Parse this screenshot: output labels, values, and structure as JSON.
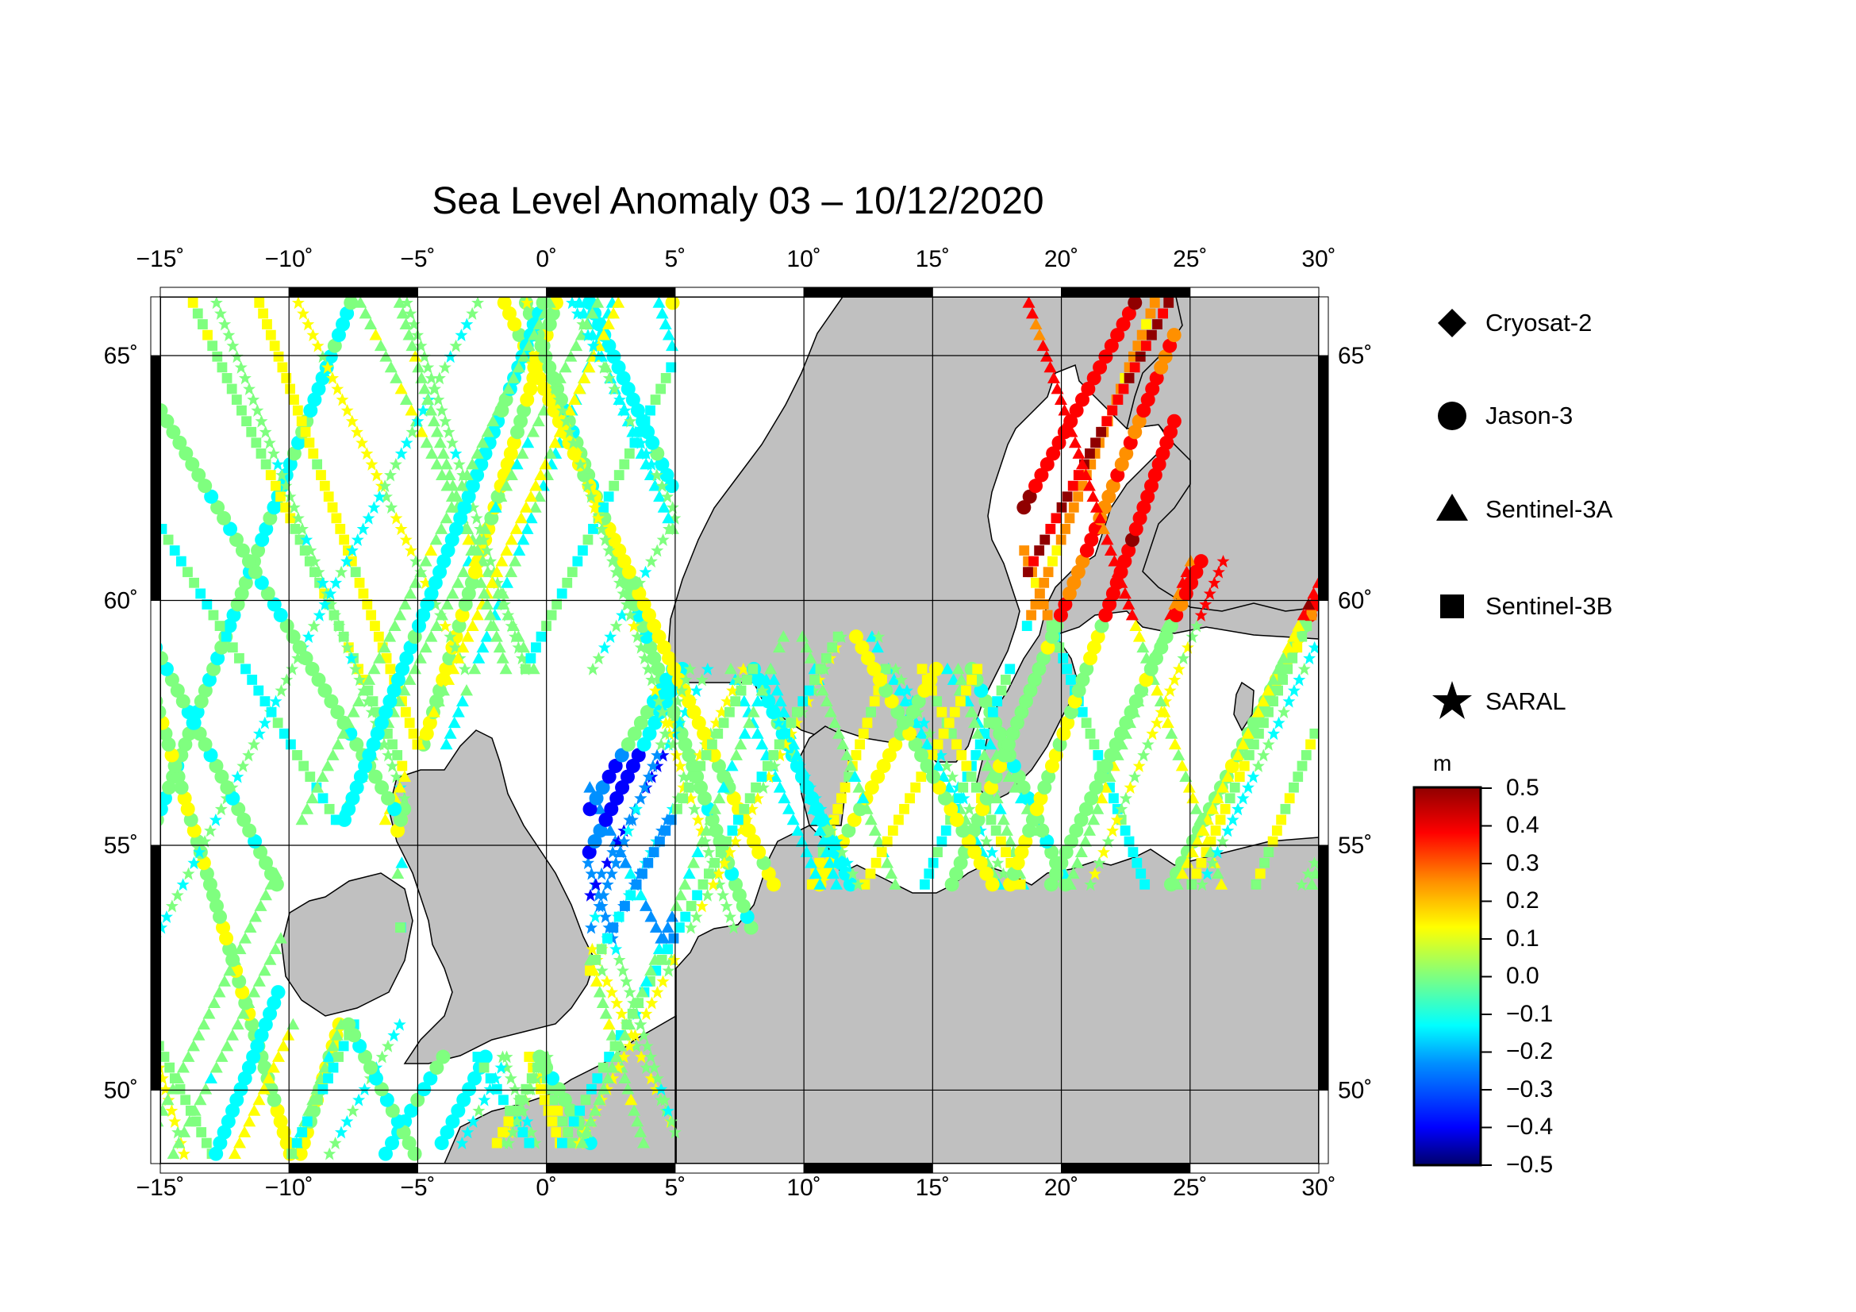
{
  "title": "Sea Level Anomaly 03 – 10/12/2020",
  "map": {
    "lon_range": [
      -15,
      30
    ],
    "lat_range": [
      48.5,
      66.2
    ],
    "lon_ticks": [
      "−15",
      "−10",
      "−5",
      "0",
      "5",
      "10",
      "15",
      "20",
      "25",
      "30"
    ],
    "lat_ticks": [
      "50",
      "55",
      "60",
      "65"
    ],
    "degree_symbol": "˚",
    "land_color": "#c0c0c0",
    "sea_color": "#ffffff",
    "grid": true
  },
  "legend": {
    "items": [
      {
        "label": "Cryosat-2",
        "icon": "diamond-icon"
      },
      {
        "label": "Jason-3",
        "icon": "circle-icon"
      },
      {
        "label": "Sentinel-3A",
        "icon": "triangle-icon"
      },
      {
        "label": "Sentinel-3B",
        "icon": "square-icon"
      },
      {
        "label": "SARAL",
        "icon": "star-icon"
      }
    ]
  },
  "colorbar": {
    "unit": "m",
    "range": [
      -0.5,
      0.5
    ],
    "ticks": [
      "0.5",
      "0.4",
      "0.3",
      "0.2",
      "0.1",
      "0.0",
      "−0.1",
      "−0.2",
      "−0.3",
      "−0.4",
      "−0.5"
    ],
    "colors": [
      "#00006a",
      "#0000ff",
      "#0090ff",
      "#00ffff",
      "#7fff7f",
      "#ffff00",
      "#ff9000",
      "#ff0000",
      "#900000"
    ]
  }
}
